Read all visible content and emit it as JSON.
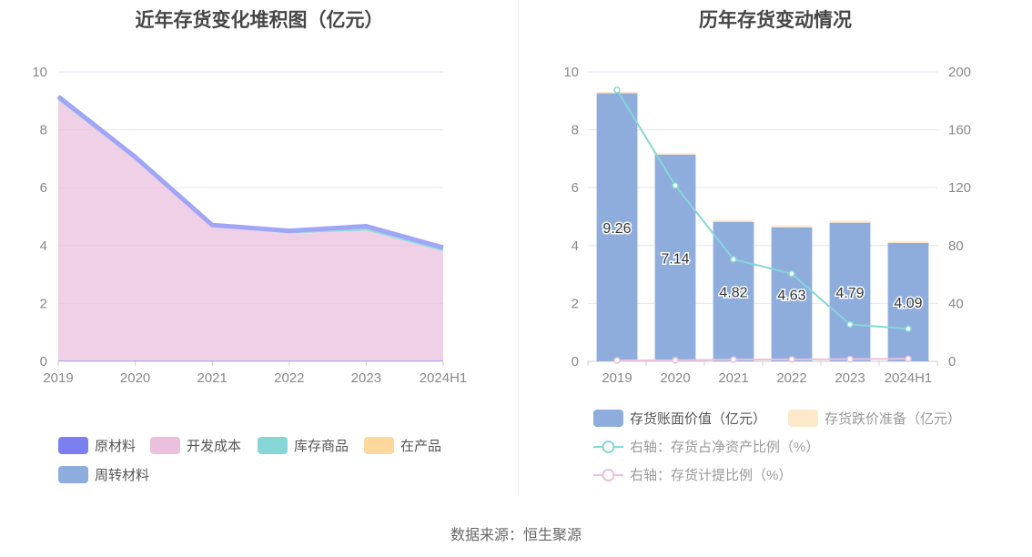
{
  "chart_data": [
    {
      "type": "area",
      "title": "近年存货变化堆积图（亿元）",
      "x": [
        "2019",
        "2020",
        "2021",
        "2022",
        "2023",
        "2024H1"
      ],
      "ylim": [
        0,
        10
      ],
      "yticks": [
        0,
        2,
        4,
        6,
        8,
        10
      ],
      "stacked": true,
      "grid": true,
      "legend_position": "bottom",
      "series": [
        {
          "name": "原材料",
          "color": "#7b7ff0",
          "values": [
            0.02,
            0.02,
            0.02,
            0.02,
            0.02,
            0.02
          ]
        },
        {
          "name": "开发成本",
          "color": "#eac0dd",
          "values": [
            9.0,
            6.95,
            4.62,
            4.4,
            4.5,
            3.78
          ]
        },
        {
          "name": "库存商品",
          "color": "#86d6d6",
          "values": [
            0.1,
            0.06,
            0.05,
            0.07,
            0.12,
            0.1
          ]
        },
        {
          "name": "在产品",
          "color": "#fdd79b",
          "values": [
            0.02,
            0.02,
            0.01,
            0.01,
            0.02,
            0.02
          ]
        },
        {
          "name": "周转材料",
          "color": "#8eaddd",
          "values": [
            0.01,
            0.01,
            0.01,
            0.01,
            0.01,
            0.01
          ]
        }
      ],
      "top_line_color": "#a1a5f5"
    },
    {
      "type": "bar",
      "title": "历年存货变动情况",
      "categories": [
        "2019",
        "2020",
        "2021",
        "2022",
        "2023",
        "2024H1"
      ],
      "ylim": [
        0,
        10
      ],
      "yticks": [
        0,
        2,
        4,
        6,
        8,
        10
      ],
      "y2lim": [
        0,
        200
      ],
      "y2ticks": [
        0,
        40,
        80,
        120,
        160,
        200
      ],
      "grid": true,
      "legend_position": "bottom",
      "series": [
        {
          "name": "存货账面价值（亿元）",
          "color": "#8eaddd",
          "values": [
            9.26,
            7.14,
            4.82,
            4.63,
            4.79,
            4.09
          ],
          "labels": [
            "9.26",
            "7.14",
            "4.82",
            "4.63",
            "4.79",
            "4.09"
          ]
        },
        {
          "name": "存货跌价准备（亿元）",
          "color": "#fde9c9",
          "values": [
            0.05,
            0.05,
            0.06,
            0.06,
            0.07,
            0.07
          ]
        },
        {
          "name": "右轴：存货占净资产比例（%）",
          "color": "#86d6d6",
          "axis": "right",
          "type": "line",
          "values": [
            187.5,
            121.5,
            70.5,
            60.5,
            25.5,
            22.5
          ]
        },
        {
          "name": "右轴：存货计提比例（%）",
          "color": "#eac0dd",
          "axis": "right",
          "type": "line",
          "values": [
            0.6,
            0.7,
            1.2,
            1.3,
            1.5,
            1.7
          ]
        }
      ]
    }
  ],
  "footer": {
    "source": "数据来源：恒生聚源"
  }
}
